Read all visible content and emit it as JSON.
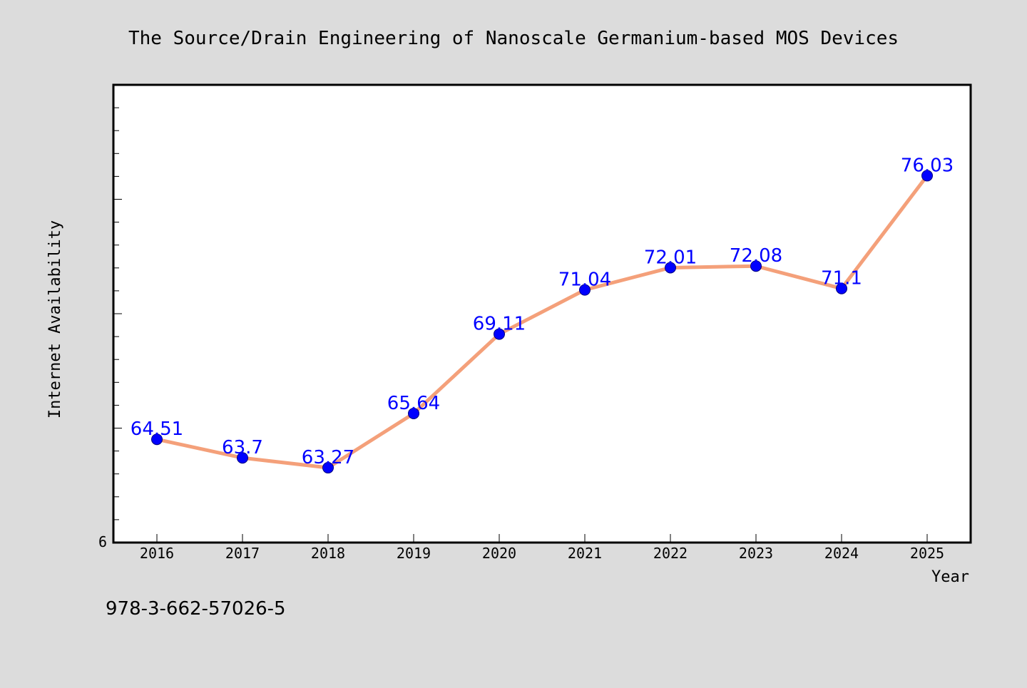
{
  "footer": {
    "isbn": "978-3-662-57026-5"
  },
  "colors": {
    "background": "#dcdcdc",
    "plot_background": "#ffffff",
    "line": "#f4a07a",
    "marker": "#0000ff",
    "label": "#0000ff"
  },
  "chart_data": {
    "type": "line",
    "title": "The Source/Drain Engineering of Nanoscale Germanium-based MOS Devices",
    "xlabel": "Year",
    "ylabel": "Internet Availability",
    "categories": [
      "2016",
      "2017",
      "2018",
      "2019",
      "2020",
      "2021",
      "2022",
      "2023",
      "2024",
      "2025"
    ],
    "series": [
      {
        "values": [
          64.51,
          63.7,
          63.27,
          65.64,
          69.11,
          71.04,
          72.01,
          72.08,
          71.1,
          76.03
        ],
        "labels": [
          "64.51",
          "63.7",
          "63.27",
          "65.64",
          "69.11",
          "71.04",
          "72.01",
          "72.08",
          "71.1",
          "76.03"
        ]
      }
    ],
    "ylim": [
      60,
      80
    ],
    "y_tick_labels": [
      "6"
    ],
    "grid": false,
    "legend": "none"
  }
}
